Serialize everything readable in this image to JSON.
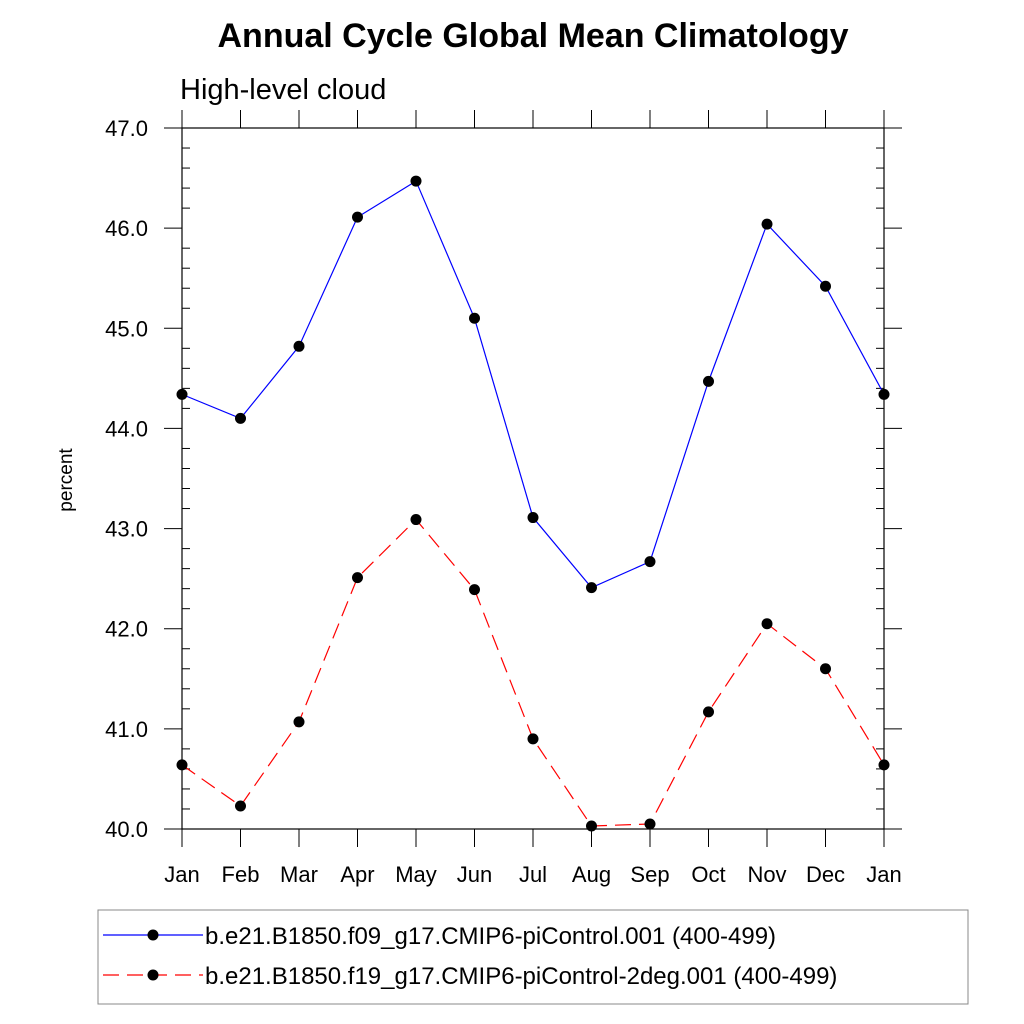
{
  "chart_data": {
    "type": "line",
    "title": "Annual Cycle Global Mean Climatology",
    "subtitle": "High-level cloud",
    "xlabel": "",
    "ylabel": "percent",
    "categories": [
      "Jan",
      "Feb",
      "Mar",
      "Apr",
      "May",
      "Jun",
      "Jul",
      "Aug",
      "Sep",
      "Oct",
      "Nov",
      "Dec",
      "Jan"
    ],
    "ylim": [
      40.0,
      47.0
    ],
    "yticks": [
      "40.0",
      "41.0",
      "42.0",
      "43.0",
      "44.0",
      "45.0",
      "46.0",
      "47.0"
    ],
    "grid": false,
    "legend_position": "bottom",
    "series": [
      {
        "name": "b.e21.B1850.f09_g17.CMIP6-piControl.001 (400-499)",
        "color": "#0000ff",
        "dash": "solid",
        "values": [
          44.34,
          44.1,
          44.82,
          46.11,
          46.47,
          45.1,
          43.11,
          42.41,
          42.67,
          44.47,
          46.04,
          45.42,
          44.34
        ]
      },
      {
        "name": "b.e21.B1850.f19_g17.CMIP6-piControl-2deg.001 (400-499)",
        "color": "#ff0000",
        "dash": "dashed",
        "values": [
          40.64,
          40.23,
          41.07,
          42.51,
          43.09,
          42.39,
          40.9,
          40.03,
          40.05,
          41.17,
          42.05,
          41.6,
          40.64
        ]
      }
    ]
  }
}
